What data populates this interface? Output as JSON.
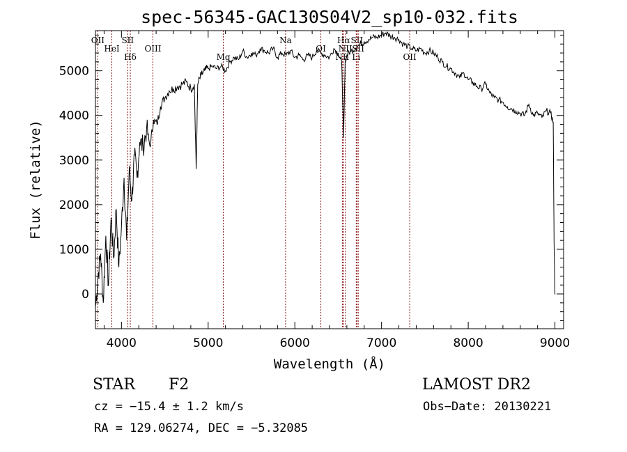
{
  "chart_data": {
    "type": "line",
    "title": "spec-56345-GAC130S04V2_sp10-032.fits",
    "xlabel": "Wavelength (Å)",
    "ylabel": "Flux (relative)",
    "xlim": [
      3700,
      9100
    ],
    "ylim": [
      -780,
      5900
    ],
    "x_ticks": [
      4000,
      5000,
      6000,
      7000,
      8000,
      9000
    ],
    "y_ticks": [
      0,
      1000,
      2000,
      3000,
      4000,
      5000
    ],
    "grid": false,
    "series": [
      {
        "x": [
          3700,
          3730,
          3760,
          3790,
          3820,
          3850,
          3880,
          3910,
          3940,
          3970,
          4000,
          4030,
          4060,
          4090,
          4120,
          4150,
          4180,
          4210,
          4250,
          4290,
          4330,
          4370,
          4410,
          4450,
          4500,
          4550,
          4600,
          4650,
          4700,
          4750,
          4800,
          4840,
          4862,
          4880,
          4920,
          4960,
          5000,
          5050,
          5100,
          5150,
          5200,
          5250,
          5300,
          5350,
          5400,
          5450,
          5500,
          5550,
          5600,
          5650,
          5700,
          5750,
          5800,
          5850,
          5900,
          5950,
          6000,
          6050,
          6100,
          6150,
          6200,
          6250,
          6300,
          6350,
          6400,
          6450,
          6500,
          6540,
          6563,
          6580,
          6600,
          6650,
          6700,
          6750,
          6800,
          6850,
          6900,
          6950,
          7000,
          7050,
          7100,
          7150,
          7200,
          7250,
          7300,
          7350,
          7400,
          7450,
          7500,
          7550,
          7600,
          7650,
          7700,
          7750,
          7800,
          7850,
          7900,
          7950,
          8000,
          8050,
          8100,
          8150,
          8200,
          8250,
          8300,
          8350,
          8400,
          8450,
          8500,
          8550,
          8600,
          8650,
          8700,
          8750,
          8800,
          8850,
          8900,
          8950,
          8980,
          8990,
          9000
        ],
        "y": [
          -300,
          400,
          900,
          -200,
          1300,
          200,
          1700,
          800,
          1900,
          600,
          1500,
          2600,
          1200,
          2800,
          2100,
          3100,
          2600,
          3400,
          3300,
          3700,
          3300,
          3900,
          3800,
          4200,
          4400,
          4550,
          4600,
          4650,
          4700,
          4750,
          4600,
          4700,
          2800,
          4700,
          4900,
          5000,
          5050,
          5100,
          5050,
          5100,
          5000,
          5200,
          5300,
          5250,
          5450,
          5300,
          5400,
          5350,
          5500,
          5450,
          5400,
          5500,
          5300,
          5400,
          5350,
          5450,
          5300,
          5350,
          5250,
          5350,
          5300,
          5450,
          5400,
          5350,
          5300,
          5500,
          5400,
          5200,
          3500,
          5200,
          5350,
          5450,
          5500,
          5600,
          5650,
          5700,
          5750,
          5750,
          5800,
          5850,
          5780,
          5750,
          5700,
          5600,
          5550,
          5500,
          5450,
          5500,
          5400,
          5450,
          5400,
          5300,
          5200,
          5100,
          5050,
          4950,
          4850,
          4950,
          4800,
          4750,
          4650,
          4600,
          4700,
          4500,
          4400,
          4350,
          4300,
          4200,
          4150,
          4100,
          4050,
          4000,
          4250,
          4000,
          4050,
          3950,
          4100,
          4050,
          3850,
          1200,
          -10
        ]
      }
    ],
    "emission_lines": [
      {
        "name": "OII",
        "wavelength": 3727
      },
      {
        "name": "HeI",
        "wavelength": 3889
      },
      {
        "name": "Hδ",
        "wavelength": 4102
      },
      {
        "name": "SII",
        "wavelength": 4072
      },
      {
        "name": "OIII",
        "wavelength": 4363
      },
      {
        "name": "Mg",
        "wavelength": 5175
      },
      {
        "name": "Na",
        "wavelength": 5893
      },
      {
        "name": "OI",
        "wavelength": 6300
      },
      {
        "name": "NII",
        "wavelength": 6548
      },
      {
        "name": "Hα",
        "wavelength": 6563
      },
      {
        "name": "NII",
        "wavelength": 6583
      },
      {
        "name": "Li",
        "wavelength": 6708
      },
      {
        "name": "SII",
        "wavelength": 6716
      },
      {
        "name": "SII",
        "wavelength": 6731
      },
      {
        "name": "OII",
        "wavelength": 7325
      }
    ],
    "colors": {
      "spectrum": "#000000",
      "lines": "#8b1a1a"
    }
  },
  "info": {
    "class": "STAR",
    "subclass": "F2",
    "survey": "LAMOST DR2",
    "cz": "cz = −15.4 ± 1.2 km/s",
    "obs_date": "Obs−Date: 20130221",
    "coords": "RA = 129.06274, DEC =  −5.32085"
  }
}
